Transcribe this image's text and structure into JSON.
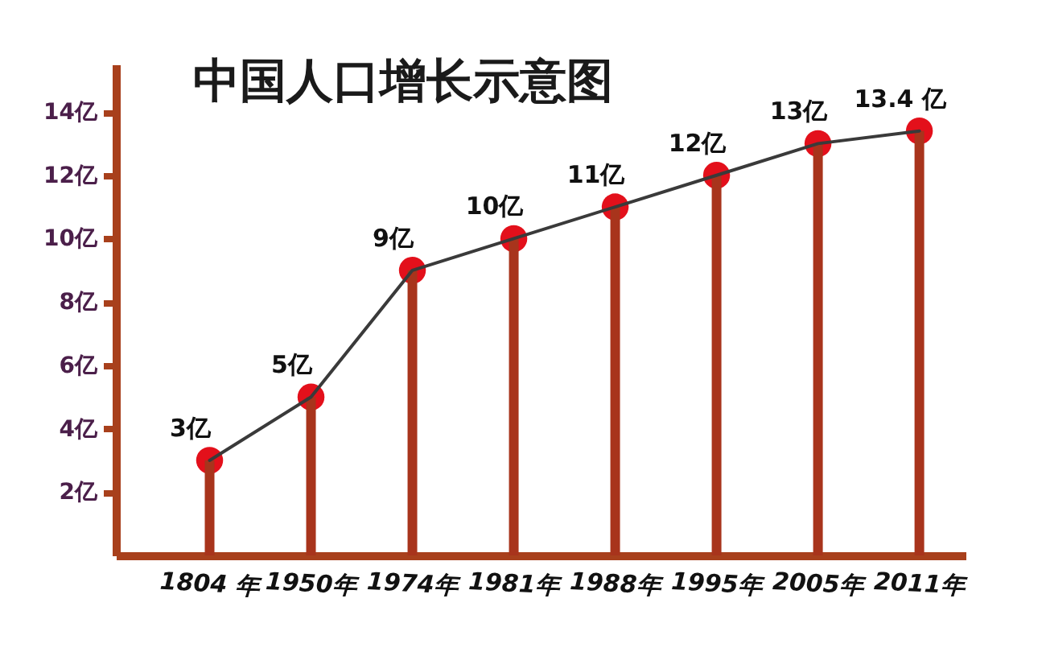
{
  "chart_data": {
    "type": "bar",
    "title": "中国人口增长示意图",
    "categories": [
      "1804 年",
      "1950年",
      "1974年",
      "1981年",
      "1988年",
      "1995年",
      "2005年",
      "2011年"
    ],
    "series": [
      {
        "color": "#a8341c",
        "values": [
          3,
          5,
          9,
          10,
          11,
          12,
          13,
          13.4
        ]
      },
      {
        "type": "line",
        "color": "#3a3a3a",
        "marker": "none",
        "values": [
          3,
          5,
          9,
          10,
          11,
          12,
          13,
          13.4
        ]
      },
      {
        "type": "scatter",
        "color": "#e3101b",
        "marker": "circle",
        "values": [
          3,
          5,
          9,
          10,
          11,
          12,
          13,
          13.4
        ],
        "value_labels": [
          "3亿",
          "5亿",
          "9亿",
          "10亿",
          "11亿",
          "12亿",
          "13亿",
          "13.4 亿"
        ]
      }
    ],
    "ylim": [
      0,
      15.5
    ],
    "yticks": [
      {
        "value": 2,
        "label": "2亿"
      },
      {
        "value": 4,
        "label": "4亿"
      },
      {
        "value": 6,
        "label": "6亿"
      },
      {
        "value": 8,
        "label": "8亿"
      },
      {
        "value": 10,
        "label": "10亿"
      },
      {
        "value": 12,
        "label": "12亿"
      },
      {
        "value": 14,
        "label": "14亿"
      }
    ],
    "line_style": "solid"
  }
}
